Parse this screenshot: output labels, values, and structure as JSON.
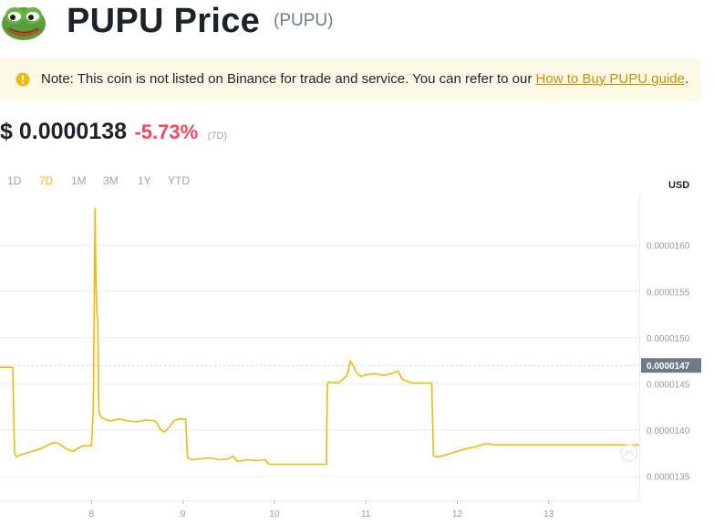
{
  "header": {
    "title": "PUPU Price",
    "symbol": "(PUPU)",
    "logo_icon": "pepe-frog-logo-icon"
  },
  "notice": {
    "icon": "exclamation-circle-icon",
    "text": "Note: This coin is not listed on Binance for trade and service. You can refer to our ",
    "link_text": "How to Buy PUPU guide",
    "suffix": "."
  },
  "price": {
    "value": "$ 0.0000138",
    "change": "-5.73%",
    "period": "(7D)"
  },
  "tabs": [
    {
      "label": "1D",
      "active": false
    },
    {
      "label": "7D",
      "active": true
    },
    {
      "label": "1M",
      "active": false
    },
    {
      "label": "3M",
      "active": false
    },
    {
      "label": "1Y",
      "active": false
    },
    {
      "label": "YTD",
      "active": false
    }
  ],
  "currency_label": "USD",
  "colors": {
    "accent": "#f0b90b",
    "down": "#f6465d",
    "line": "#f0b90b",
    "marker_bg": "#707a8a"
  },
  "chart_data": {
    "type": "line",
    "x_ticks": [
      "8",
      "9",
      "10",
      "11",
      "12",
      "13"
    ],
    "y_ticks": [
      "0.0000160",
      "0.0000155",
      "0.0000150",
      "0.0000145",
      "0.0000140",
      "0.0000135"
    ],
    "xlim": [
      7.0,
      13.99
    ],
    "ylim": [
      1.324e-05,
      1.654e-05
    ],
    "current_value_label": "0.0000147",
    "current_value": 1.47e-05,
    "grid": true,
    "series": [
      {
        "x": [
          7.0,
          7.14,
          7.16,
          7.18,
          7.25,
          7.35,
          7.45,
          7.55,
          7.6,
          7.65,
          7.72,
          7.8,
          7.85,
          7.9,
          8.0,
          8.02,
          8.04,
          8.05,
          8.06,
          8.07,
          8.08,
          8.1,
          8.12,
          8.2,
          8.3,
          8.4,
          8.5,
          8.6,
          8.7,
          8.76,
          8.8,
          8.85,
          8.9,
          8.95,
          9.03,
          9.05,
          9.1,
          9.2,
          9.3,
          9.4,
          9.5,
          9.55,
          9.6,
          9.7,
          9.8,
          9.9,
          9.93,
          9.95,
          10.0,
          10.5,
          10.57,
          10.58,
          10.6,
          10.7,
          10.75,
          10.8,
          10.83,
          10.86,
          10.9,
          10.95,
          11.0,
          11.1,
          11.2,
          11.3,
          11.35,
          11.4,
          11.5,
          11.6,
          11.71,
          11.72,
          11.74,
          11.8,
          11.9,
          12.0,
          12.1,
          12.2,
          12.3,
          12.35,
          12.4,
          12.5,
          13.0,
          13.5,
          13.99
        ],
        "y": [
          1.468e-05,
          1.468e-05,
          1.375e-05,
          1.371e-05,
          1.374e-05,
          1.377e-05,
          1.38e-05,
          1.385e-05,
          1.387e-05,
          1.385e-05,
          1.38e-05,
          1.377e-05,
          1.38e-05,
          1.383e-05,
          1.383e-05,
          1.42e-05,
          1.64e-05,
          1.56e-05,
          1.525e-05,
          1.522e-05,
          1.42e-05,
          1.415e-05,
          1.413e-05,
          1.41e-05,
          1.412e-05,
          1.41e-05,
          1.409e-05,
          1.411e-05,
          1.41e-05,
          1.4e-05,
          1.398e-05,
          1.403e-05,
          1.41e-05,
          1.412e-05,
          1.412e-05,
          1.37e-05,
          1.368e-05,
          1.369e-05,
          1.37e-05,
          1.368e-05,
          1.369e-05,
          1.372e-05,
          1.366e-05,
          1.368e-05,
          1.367e-05,
          1.368e-05,
          1.364e-05,
          1.363e-05,
          1.363e-05,
          1.363e-05,
          1.363e-05,
          1.45e-05,
          1.452e-05,
          1.451e-05,
          1.455e-05,
          1.46e-05,
          1.475e-05,
          1.47e-05,
          1.462e-05,
          1.458e-05,
          1.46e-05,
          1.461e-05,
          1.459e-05,
          1.462e-05,
          1.464e-05,
          1.455e-05,
          1.451e-05,
          1.451e-05,
          1.451e-05,
          1.451e-05,
          1.372e-05,
          1.371e-05,
          1.374e-05,
          1.377e-05,
          1.38e-05,
          1.382e-05,
          1.385e-05,
          1.385e-05,
          1.384e-05,
          1.384e-05,
          1.384e-05,
          1.384e-05,
          1.384e-05
        ]
      }
    ]
  }
}
